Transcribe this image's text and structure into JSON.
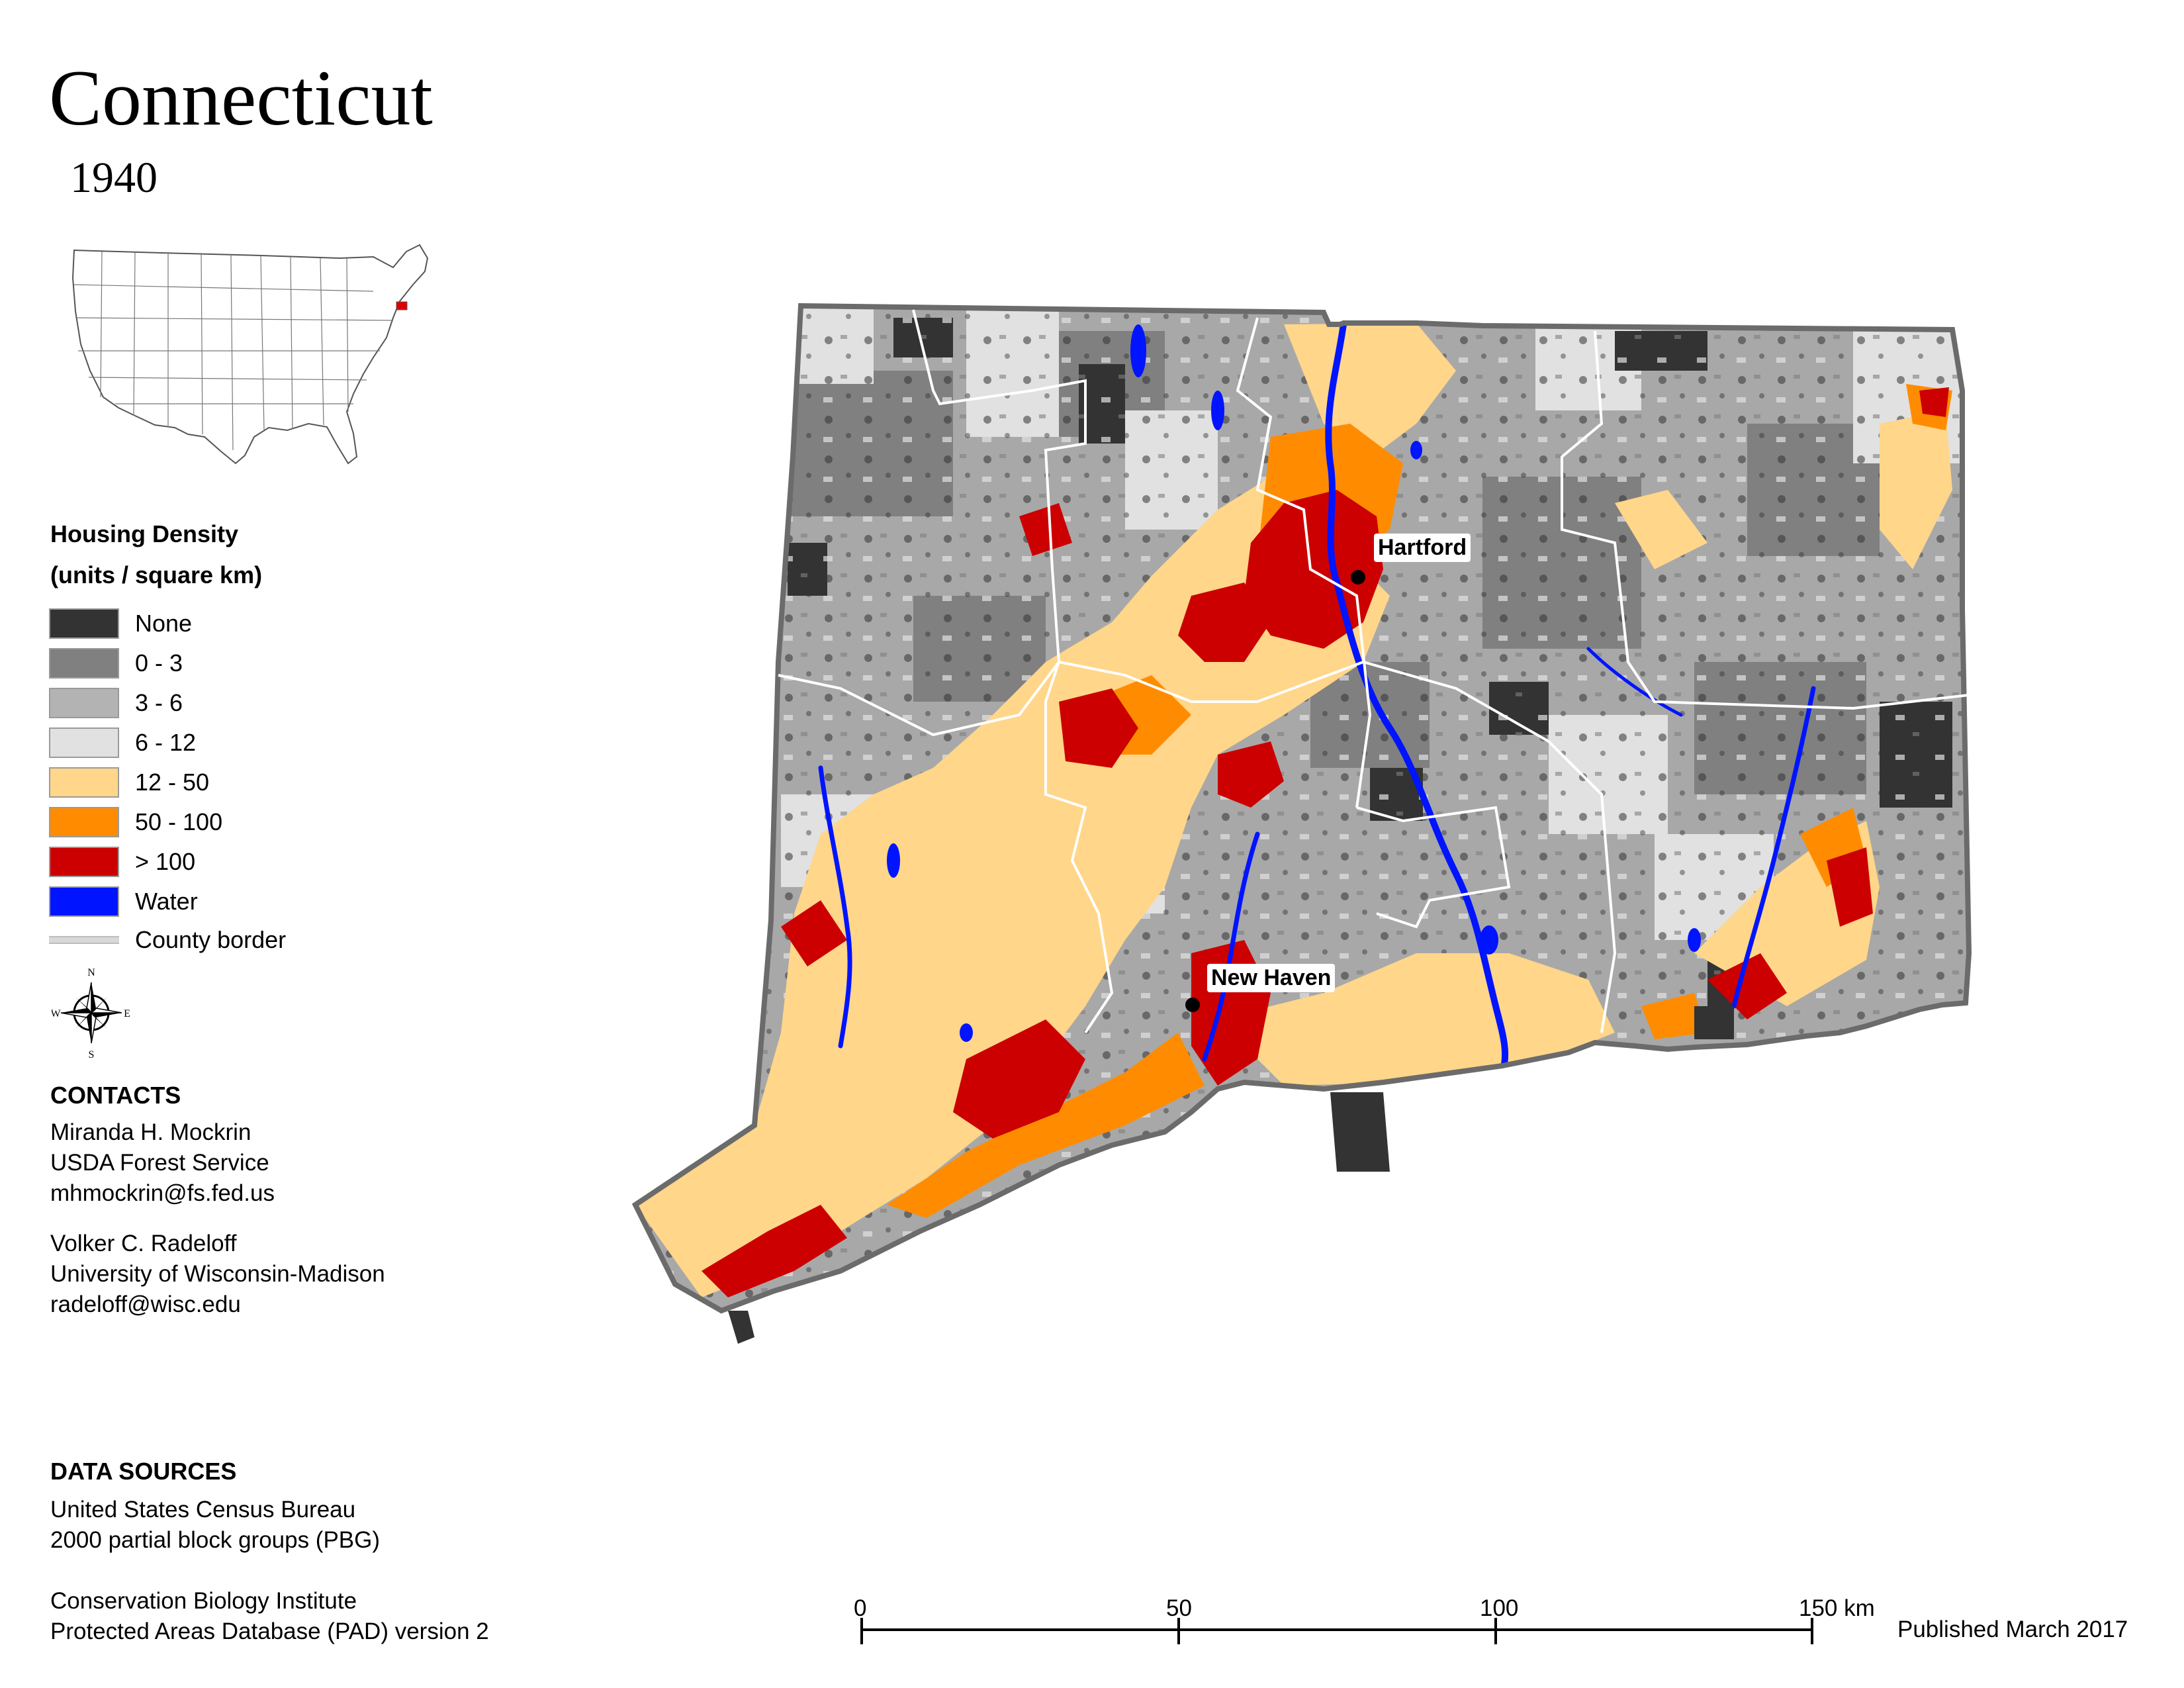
{
  "title": "Connecticut",
  "year": "1940",
  "legend": {
    "title_line1": "Housing Density",
    "title_line2": "(units / square km)",
    "items": [
      {
        "label": "None",
        "color": "#333333"
      },
      {
        "label": "0 - 3",
        "color": "#808080"
      },
      {
        "label": "3 - 6",
        "color": "#b3b3b3"
      },
      {
        "label": "6 - 12",
        "color": "#e1e1e1"
      },
      {
        "label": "12 - 50",
        "color": "#ffd68a"
      },
      {
        "label": "50 - 100",
        "color": "#ff8c00"
      },
      {
        "label": "> 100",
        "color": "#cc0000"
      },
      {
        "label": "Water",
        "color": "#0014ff"
      },
      {
        "label": "County border",
        "color": "#d8d8d8"
      }
    ]
  },
  "compass": {
    "n": "N",
    "s": "S",
    "e": "E",
    "w": "W"
  },
  "contacts": {
    "heading": "CONTACTS",
    "person1": [
      "Miranda H. Mockrin",
      "USDA Forest Service",
      "mhmockrin@fs.fed.us"
    ],
    "person2": [
      "Volker C. Radeloff",
      "University of Wisconsin-Madison",
      "radeloff@wisc.edu"
    ]
  },
  "data_sources": {
    "heading": "DATA SOURCES",
    "source1": [
      "United States Census Bureau",
      "2000 partial block groups (PBG)"
    ],
    "source2": [
      "Conservation Biology Institute",
      "Protected Areas Database (PAD) version 2"
    ]
  },
  "cities": [
    {
      "name": "Hartford"
    },
    {
      "name": "New Haven"
    }
  ],
  "scale": {
    "labels": [
      "0",
      "50",
      "100",
      "150 km"
    ]
  },
  "published": "Published March 2017"
}
